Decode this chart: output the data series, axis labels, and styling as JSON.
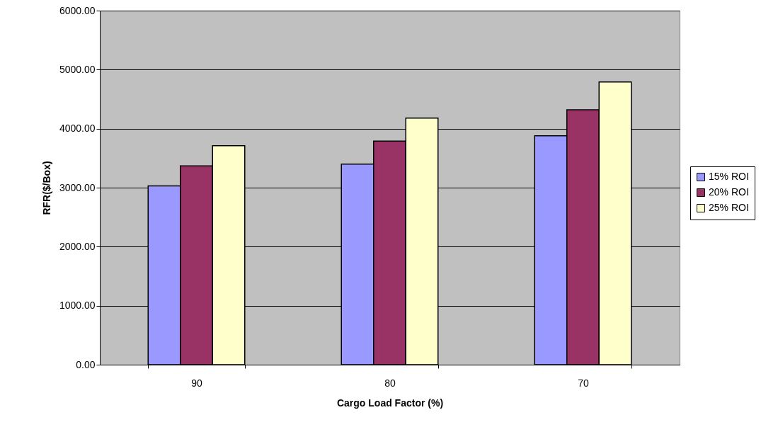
{
  "chart_data": {
    "type": "bar",
    "xlabel": "Cargo Load Factor (%)",
    "ylabel": "RFR($/Box)",
    "categories": [
      "90",
      "80",
      "70"
    ],
    "series": [
      {
        "name": "15% ROI",
        "color": "#9999ff",
        "values": [
          3030,
          3400,
          3880
        ]
      },
      {
        "name": "20% ROI",
        "color": "#993366",
        "values": [
          3370,
          3790,
          4320
        ]
      },
      {
        "name": "25% ROI",
        "color": "#ffffcc",
        "values": [
          3710,
          4180,
          4790
        ]
      }
    ],
    "ylim": [
      0,
      6000
    ],
    "yticks": [
      {
        "value": 0,
        "label": "0.00"
      },
      {
        "value": 1000,
        "label": "1000.00"
      },
      {
        "value": 2000,
        "label": "2000.00"
      },
      {
        "value": 3000,
        "label": "3000.00"
      },
      {
        "value": 4000,
        "label": "4000.00"
      },
      {
        "value": 5000,
        "label": "5000.00"
      },
      {
        "value": 6000,
        "label": "6000.00"
      }
    ],
    "grid": "y",
    "legend": "right"
  }
}
